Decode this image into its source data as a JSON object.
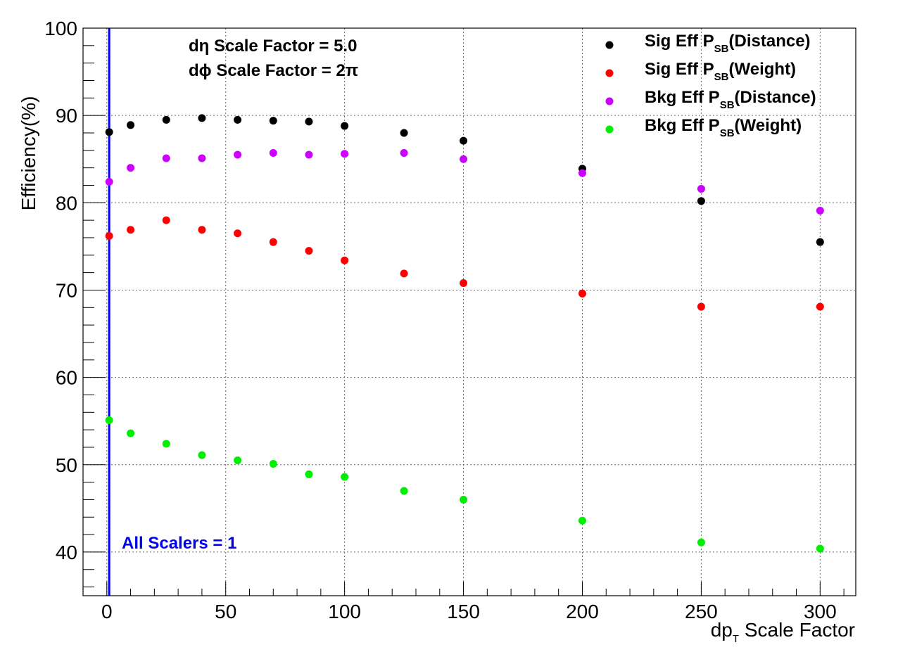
{
  "chart_data": {
    "type": "scatter",
    "xlabel": {
      "main": "dp",
      "sub": "T",
      "rest": " Scale Factor"
    },
    "ylabel": "Efficiency(%)",
    "xlim": [
      -10,
      315
    ],
    "ylim": [
      35,
      100
    ],
    "x_ticks": [
      0,
      50,
      100,
      150,
      200,
      250,
      300
    ],
    "y_ticks": [
      40,
      50,
      60,
      70,
      80,
      90,
      100
    ],
    "grid": true,
    "legend_position": "top-right",
    "x": [
      1,
      10,
      25,
      40,
      55,
      70,
      85,
      100,
      125,
      150,
      200,
      250,
      300
    ],
    "series": [
      {
        "name": "Sig Eff P_SB(Distance)",
        "label": {
          "pre": "Sig Eff P",
          "sub": "SB",
          "post": "(Distance)"
        },
        "color": "#000000",
        "values": [
          88.1,
          88.9,
          89.5,
          89.7,
          89.5,
          89.4,
          89.3,
          88.8,
          88.0,
          87.1,
          83.9,
          80.2,
          75.5
        ]
      },
      {
        "name": "Sig Eff P_SB(Weight)",
        "label": {
          "pre": "Sig Eff P",
          "sub": "SB",
          "post": "(Weight)"
        },
        "color": "#ff0000",
        "values": [
          76.2,
          76.9,
          78.0,
          76.9,
          76.5,
          75.5,
          74.5,
          73.4,
          71.9,
          70.8,
          69.6,
          68.1,
          68.1
        ]
      },
      {
        "name": "Bkg Eff P_SB(Distance)",
        "label": {
          "pre": "Bkg Eff P",
          "sub": "SB",
          "post": "(Distance)"
        },
        "color": "#cc00ff",
        "values": [
          82.4,
          84.0,
          85.1,
          85.1,
          85.5,
          85.7,
          85.5,
          85.6,
          85.7,
          85.0,
          83.4,
          81.6,
          79.1
        ]
      },
      {
        "name": "Bkg Eff P_SB(Weight)",
        "label": {
          "pre": "Bkg Eff P",
          "sub": "SB",
          "post": "(Weight)"
        },
        "color": "#00ee00",
        "values": [
          55.1,
          53.6,
          52.4,
          51.1,
          50.5,
          50.1,
          48.9,
          48.6,
          47.0,
          46.0,
          43.6,
          41.1,
          40.4
        ]
      }
    ],
    "annotations": [
      {
        "text": "dη Scale Factor = 5.0"
      },
      {
        "text": "dϕ Scale Factor = 2π"
      }
    ],
    "reference_line": {
      "x": 1,
      "label": "All Scalers = 1",
      "color": "#0000ee"
    }
  }
}
